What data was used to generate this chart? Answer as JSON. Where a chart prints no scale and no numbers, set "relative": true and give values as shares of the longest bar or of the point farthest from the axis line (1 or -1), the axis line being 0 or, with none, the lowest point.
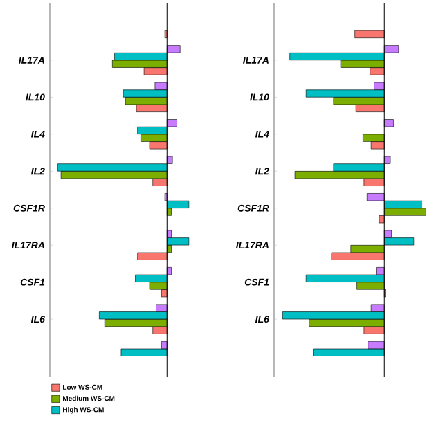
{
  "chart_data": [
    {
      "type": "bar",
      "orientation": "horizontal",
      "relative": true,
      "legend": "bottom left",
      "categories": [
        null,
        "IL17A",
        "IL10",
        "IL4",
        "IL2",
        "CSF1R",
        "IL17RA",
        "CSF1",
        "IL6",
        null
      ],
      "series": [
        {
          "name": "Low WS-CM",
          "color": "#f8766d",
          "values": [
            -0.02,
            -0.21,
            -0.28,
            -0.16,
            -0.13,
            null,
            -0.27,
            -0.05,
            -0.13,
            null
          ]
        },
        {
          "name": "Medium WS-CM",
          "color": "#7cae00",
          "values": [
            null,
            -0.5,
            -0.38,
            -0.24,
            -0.97,
            0.04,
            0.04,
            -0.16,
            -0.57,
            null
          ]
        },
        {
          "name": "High WS-CM",
          "color": "#00bfc4",
          "values": [
            null,
            -0.48,
            -0.4,
            -0.27,
            -1,
            0.2,
            0.2,
            -0.29,
            -0.62,
            -0.42
          ]
        },
        {
          "color": "#c77cff",
          "values": [
            null,
            0.12,
            -0.11,
            0.09,
            0.05,
            -0.02,
            0.04,
            0.04,
            -0.1,
            -0.05
          ]
        }
      ]
    },
    {
      "type": "bar",
      "orientation": "horizontal",
      "relative": true,
      "categories": [
        null,
        "IL17A",
        "IL10",
        "IL4",
        "IL2",
        "CSF1R",
        "IL17RA",
        "CSF1",
        "IL6",
        null
      ],
      "series": [
        {
          "color": "#f8766d",
          "values": [
            -0.29,
            -0.14,
            -0.28,
            -0.13,
            -0.2,
            -0.05,
            -0.52,
            0.01,
            -0.2,
            null
          ]
        },
        {
          "color": "#7cae00",
          "values": [
            null,
            -0.43,
            -0.5,
            -0.21,
            -0.88,
            0.41,
            -0.33,
            -0.27,
            -0.74,
            null
          ]
        },
        {
          "color": "#00bfc4",
          "values": [
            null,
            -0.93,
            -0.77,
            null,
            -0.5,
            0.37,
            0.29,
            -0.77,
            -1,
            -0.7
          ]
        },
        {
          "color": "#c77cff",
          "values": [
            null,
            0.14,
            -0.1,
            0.09,
            0.06,
            -0.17,
            0.07,
            -0.08,
            -0.13,
            -0.16
          ]
        }
      ]
    }
  ]
}
